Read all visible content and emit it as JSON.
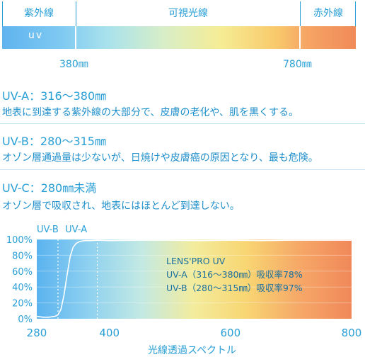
{
  "spectrum": {
    "headers": [
      "紫外線",
      "可視光線",
      "赤外線"
    ],
    "uv_label": "uv",
    "boundaries": [
      "380㎜",
      "780㎜"
    ]
  },
  "sections": [
    {
      "title": "UV-A：316～380㎜",
      "body": "地表に到達する紫外線の大部分で、皮膚の老化や、肌を黒くする。"
    },
    {
      "title": "UV-B：280～315㎜",
      "body": "オゾン層通過量は少ないが、日焼けや皮膚癌の原因となり、最も危険。"
    },
    {
      "title": "UV-C：280㎜未満",
      "body": "オゾン層で吸収され、地表にはほとんど到達しない。"
    }
  ],
  "chart_data": {
    "type": "line",
    "xlabel": "光線透過スペクトル",
    "ylabel": "",
    "xlim": [
      280,
      800
    ],
    "ylim": [
      0,
      100
    ],
    "xticks": [
      280,
      400,
      600,
      800
    ],
    "yticks": [
      0,
      20,
      40,
      60,
      80,
      100
    ],
    "xtick_labels": [
      "280",
      "400",
      "600",
      "800"
    ],
    "ytick_labels": [
      "0%",
      "20%",
      "40%",
      "60%",
      "80%",
      "100%"
    ],
    "region_labels": [
      {
        "label": "UV-B",
        "x": 298
      },
      {
        "label": "UV-A",
        "x": 345
      }
    ],
    "dashed_lines": [
      315,
      380
    ],
    "annotation": [
      "LENS'PRO UV",
      "UV-A（316～380㎜）吸収率78%",
      "UV-B（280～315㎜）吸収率97%"
    ],
    "series": [
      {
        "x": [
          280,
          290,
          300,
          310,
          315,
          320,
          325,
          330,
          335,
          340,
          345,
          350,
          355,
          360,
          370,
          380,
          400,
          450,
          500,
          550,
          600,
          650,
          700,
          750,
          800
        ],
        "y": [
          3,
          2,
          2,
          3,
          5,
          12,
          30,
          55,
          78,
          90,
          95,
          97,
          98,
          98.5,
          98.5,
          99,
          98.5,
          99,
          99,
          98.5,
          99,
          98.5,
          99,
          99,
          99
        ]
      }
    ],
    "gradient_colors": [
      "#5ab3ef",
      "#8fd1f0",
      "#c3e9e3",
      "#f3ec9c",
      "#f8d572",
      "#f6a868",
      "#f08859"
    ]
  }
}
